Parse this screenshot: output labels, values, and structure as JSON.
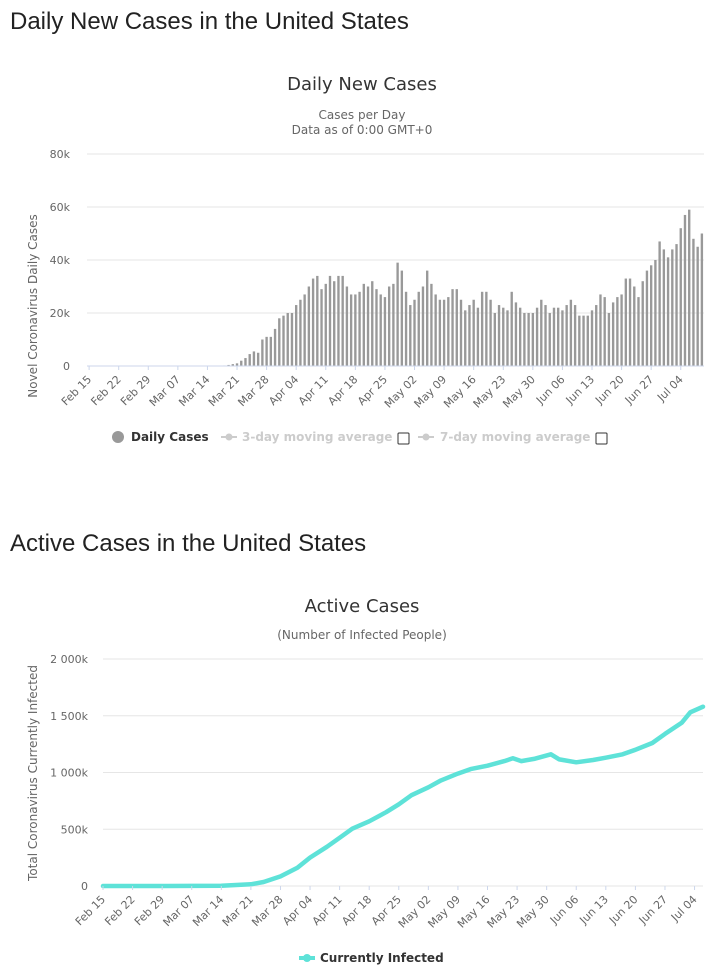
{
  "sections": [
    {
      "heading": "Daily New Cases in the United States"
    },
    {
      "heading": "Active Cases in the United States"
    }
  ],
  "colors": {
    "bar": "#999999",
    "line": "#5ee2d8",
    "legend_muted": "#cccccc",
    "grid": "#e6e6e6"
  },
  "date_ticks": [
    "Feb 15",
    "Feb 22",
    "Feb 29",
    "Mar 07",
    "Mar 14",
    "Mar 21",
    "Mar 28",
    "Apr 04",
    "Apr 11",
    "Apr 18",
    "Apr 25",
    "May 02",
    "May 09",
    "May 16",
    "May 23",
    "May 30",
    "Jun 06",
    "Jun 13",
    "Jun 20",
    "Jun 27",
    "Jul 04"
  ],
  "chart_data": [
    {
      "type": "bar",
      "title": "Daily New Cases",
      "subtitle": "Cases per Day",
      "subtitle2": "Data as of 0:00 GMT+0",
      "xlabel": "",
      "ylabel": "Novel Coronavirus Daily Cases",
      "ylim": [
        0,
        80000
      ],
      "yticks": [
        "0",
        "20k",
        "40k",
        "60k",
        "80k"
      ],
      "ytick_values": [
        0,
        20000,
        40000,
        60000,
        80000
      ],
      "x_start": "2020-02-15",
      "x_end": "2020-07-06",
      "legend": [
        {
          "label": "Daily Cases",
          "active": true
        },
        {
          "label": "3-day moving average",
          "active": false
        },
        {
          "label": "7-day moving average",
          "active": false
        }
      ],
      "values": [
        0,
        0,
        0,
        0,
        0,
        0,
        0,
        0,
        0,
        0,
        0,
        0,
        0,
        0,
        0,
        0,
        0,
        0,
        0,
        0,
        0,
        0,
        0,
        0,
        0,
        0,
        0,
        0,
        0,
        0,
        0,
        0,
        200,
        400,
        700,
        1000,
        2000,
        3000,
        4500,
        5500,
        5000,
        10000,
        11000,
        11000,
        14000,
        18000,
        19000,
        20000,
        20000,
        23000,
        25000,
        27000,
        30000,
        33000,
        34000,
        29000,
        31000,
        34000,
        32000,
        34000,
        34000,
        30000,
        27000,
        27000,
        28000,
        31000,
        30000,
        32000,
        29000,
        27000,
        26000,
        30000,
        31000,
        39000,
        36000,
        28000,
        23000,
        25000,
        28000,
        30000,
        36000,
        31000,
        27000,
        25000,
        25000,
        26000,
        29000,
        29000,
        25000,
        21000,
        23000,
        25000,
        22000,
        28000,
        28000,
        25000,
        20000,
        23000,
        22000,
        21000,
        28000,
        24000,
        22000,
        20000,
        20000,
        20000,
        22000,
        25000,
        23000,
        20000,
        22000,
        22000,
        21000,
        23000,
        25000,
        23000,
        19000,
        19000,
        19000,
        21000,
        23000,
        27000,
        26000,
        20000,
        24000,
        26000,
        27000,
        33000,
        33000,
        30000,
        26000,
        32000,
        36000,
        38000,
        40000,
        47000,
        44000,
        41000,
        44000,
        46000,
        52000,
        57000,
        59000,
        48000,
        45000,
        50000
      ]
    },
    {
      "type": "line",
      "title": "Active Cases",
      "subtitle": "(Number of Infected People)",
      "xlabel": "",
      "ylabel": "Total Coronavirus Currently Infected",
      "ylim": [
        0,
        2000000
      ],
      "yticks": [
        "0",
        "500k",
        "1 000k",
        "1 500k",
        "2 000k"
      ],
      "ytick_values": [
        0,
        500000,
        1000000,
        1500000,
        2000000
      ],
      "x_start": "2020-02-15",
      "x_end": "2020-07-06",
      "legend": [
        {
          "label": "Currently Infected",
          "active": true
        }
      ],
      "series": [
        {
          "name": "Currently Infected",
          "points": [
            [
              "2020-02-15",
              0
            ],
            [
              "2020-03-01",
              50
            ],
            [
              "2020-03-14",
              3000
            ],
            [
              "2020-03-21",
              15000
            ],
            [
              "2020-03-24",
              35000
            ],
            [
              "2020-03-28",
              85000
            ],
            [
              "2020-04-01",
              160000
            ],
            [
              "2020-04-04",
              250000
            ],
            [
              "2020-04-08",
              345000
            ],
            [
              "2020-04-11",
              425000
            ],
            [
              "2020-04-14",
              505000
            ],
            [
              "2020-04-18",
              570000
            ],
            [
              "2020-04-22",
              650000
            ],
            [
              "2020-04-25",
              720000
            ],
            [
              "2020-04-28",
              800000
            ],
            [
              "2020-05-02",
              870000
            ],
            [
              "2020-05-05",
              930000
            ],
            [
              "2020-05-09",
              990000
            ],
            [
              "2020-05-12",
              1030000
            ],
            [
              "2020-05-16",
              1060000
            ],
            [
              "2020-05-20",
              1100000
            ],
            [
              "2020-05-22",
              1125000
            ],
            [
              "2020-05-24",
              1100000
            ],
            [
              "2020-05-27",
              1120000
            ],
            [
              "2020-05-31",
              1160000
            ],
            [
              "2020-06-02",
              1115000
            ],
            [
              "2020-06-06",
              1090000
            ],
            [
              "2020-06-10",
              1110000
            ],
            [
              "2020-06-13",
              1130000
            ],
            [
              "2020-06-17",
              1160000
            ],
            [
              "2020-06-20",
              1200000
            ],
            [
              "2020-06-24",
              1260000
            ],
            [
              "2020-06-27",
              1340000
            ],
            [
              "2020-07-01",
              1440000
            ],
            [
              "2020-07-03",
              1530000
            ],
            [
              "2020-07-06",
              1580000
            ]
          ]
        }
      ]
    }
  ]
}
